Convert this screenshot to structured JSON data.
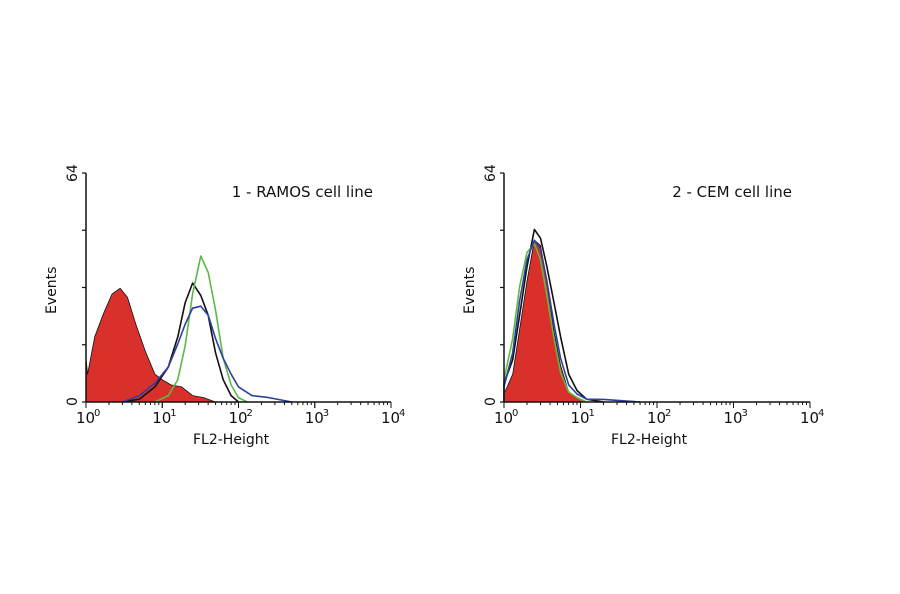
{
  "chart_data": [
    {
      "type": "histogram",
      "title": "1 - RAMOS cell line",
      "xlabel": "FL2-Height",
      "ylabel": "Events",
      "xscale": "log",
      "xlim": [
        1,
        10000
      ],
      "ylim": [
        0,
        64
      ],
      "x_tick_labels": [
        {
          "base": "10",
          "exp": "0"
        },
        {
          "base": "10",
          "exp": "1"
        },
        {
          "base": "10",
          "exp": "2"
        },
        {
          "base": "10",
          "exp": "3"
        },
        {
          "base": "10",
          "exp": "4"
        }
      ],
      "y_tick_labels": [
        "0",
        "64"
      ],
      "grid": false,
      "series": [
        {
          "color": "#d9302c",
          "filled": true,
          "x": [
            1,
            1.05,
            1.3,
            1.7,
            2.2,
            2.8,
            3.5,
            4.5,
            6,
            8,
            10,
            13,
            18,
            25,
            35,
            50
          ],
          "y": [
            12,
            8,
            18,
            25,
            30,
            32,
            29,
            22,
            14,
            8,
            6,
            5,
            4,
            2,
            1,
            0
          ]
        },
        {
          "color": "#111111",
          "filled": false,
          "x": [
            3,
            5,
            8,
            12,
            16,
            20,
            25,
            32,
            40,
            50,
            63,
            80,
            100
          ],
          "y": [
            0,
            1,
            4,
            10,
            18,
            28,
            33,
            30,
            24,
            14,
            6,
            2,
            0
          ]
        },
        {
          "color": "#5cb946",
          "filled": false,
          "x": [
            8,
            12,
            16,
            20,
            25,
            32,
            40,
            50,
            63,
            80,
            100,
            130
          ],
          "y": [
            0,
            2,
            6,
            16,
            30,
            41,
            36,
            26,
            12,
            5,
            1,
            0
          ]
        },
        {
          "color": "#2f3f9e",
          "filled": false,
          "x": [
            3,
            5,
            8,
            12,
            16,
            20,
            25,
            32,
            40,
            50,
            63,
            80,
            100,
            150,
            250,
            500
          ],
          "y": [
            0,
            2,
            5,
            10,
            16,
            22,
            26,
            27,
            24,
            18,
            12,
            8,
            4,
            2,
            1,
            0
          ]
        }
      ]
    },
    {
      "type": "histogram",
      "title": "2 - CEM cell line",
      "xlabel": "FL2-Height",
      "ylabel": "Events",
      "xscale": "log",
      "xlim": [
        1,
        10000
      ],
      "ylim": [
        0,
        64
      ],
      "x_tick_labels": [
        {
          "base": "10",
          "exp": "0"
        },
        {
          "base": "10",
          "exp": "1"
        },
        {
          "base": "10",
          "exp": "2"
        },
        {
          "base": "10",
          "exp": "3"
        },
        {
          "base": "10",
          "exp": "4"
        }
      ],
      "y_tick_labels": [
        "0",
        "64"
      ],
      "grid": false,
      "series": [
        {
          "color": "#d9302c",
          "filled": true,
          "x": [
            1,
            1.3,
            1.6,
            2,
            2.5,
            3,
            3.6,
            4.5,
            5.5,
            7,
            9,
            12
          ],
          "y": [
            2,
            8,
            20,
            34,
            45,
            44,
            34,
            20,
            10,
            3,
            1,
            0
          ]
        },
        {
          "color": "#111111",
          "filled": false,
          "x": [
            1,
            1.3,
            1.6,
            2,
            2.5,
            3,
            3.6,
            4.5,
            5.5,
            7,
            9,
            12,
            20
          ],
          "y": [
            5,
            12,
            24,
            38,
            48,
            46,
            38,
            28,
            18,
            8,
            3,
            1,
            0
          ]
        },
        {
          "color": "#5cb946",
          "filled": false,
          "x": [
            1,
            1.3,
            1.6,
            2,
            2.5,
            3,
            3.6,
            4.5,
            5.5,
            7,
            9,
            12
          ],
          "y": [
            6,
            18,
            32,
            42,
            44,
            40,
            30,
            18,
            8,
            3,
            1,
            0
          ]
        },
        {
          "color": "#2f3f9e",
          "filled": false,
          "x": [
            1,
            1.3,
            1.6,
            2,
            2.5,
            3,
            3.6,
            4.5,
            5.5,
            7,
            9,
            12,
            20,
            60
          ],
          "y": [
            4,
            14,
            28,
            40,
            45,
            43,
            34,
            22,
            12,
            5,
            2,
            1,
            0.5,
            0
          ]
        }
      ]
    }
  ]
}
